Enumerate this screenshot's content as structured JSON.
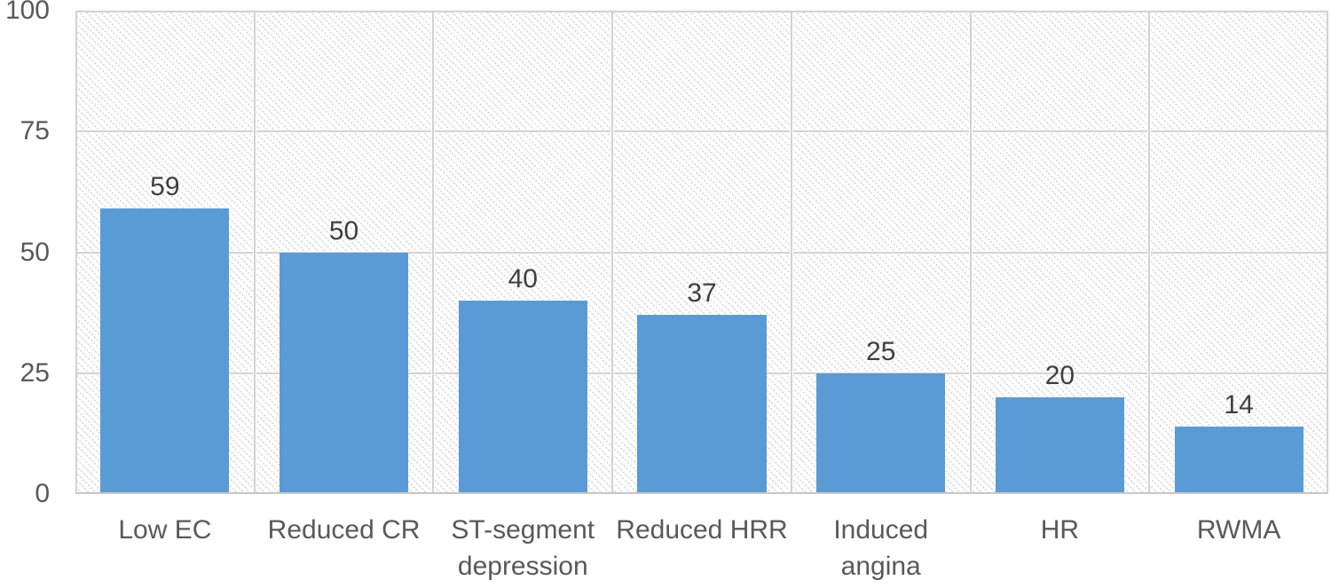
{
  "chart_data": {
    "type": "bar",
    "title": "",
    "xlabel": "",
    "ylabel": "",
    "categories": [
      "Low EC",
      "Reduced CR",
      "ST-segment\ndepression",
      "Reduced HRR",
      "Induced\nangina",
      "HR",
      "RWMA"
    ],
    "values": [
      59,
      50,
      40,
      37,
      25,
      20,
      14
    ],
    "ylim": [
      0,
      100
    ],
    "yticks": [
      0,
      25,
      50,
      75,
      100
    ],
    "grid": "major horizontal and vertical gridlines shown",
    "legend_position": "none",
    "plot_area_fill": "light diagonal dotted hatch pattern",
    "data_labels_shown": true
  },
  "colors": {
    "bar_fill": "#5B9BD5",
    "axis_label_text": "#595959",
    "data_label_text": "#3f3f3f",
    "gridline": "#d2d2d2",
    "hatch_dot": "#d9d9d9",
    "background": "#ffffff"
  }
}
